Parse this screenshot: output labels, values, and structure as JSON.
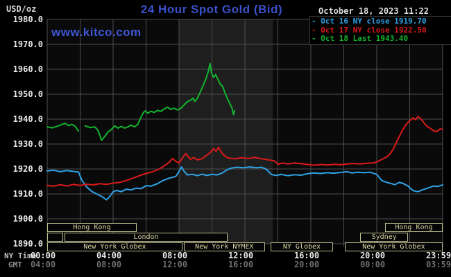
{
  "colors": {
    "title_blue": "#3a51c9",
    "watermark_blue": "#3e56d4",
    "series_blue": "#2fa3e8",
    "series_red": "#dc1a1a",
    "series_green": "#12b52e",
    "gridline": "#4e4e4e",
    "band": "#1e1e1e",
    "chart_bg": "#0a0a0a",
    "session_khaki": "#d9d9a8"
  },
  "header": {
    "unit": "USD/oz",
    "title": "24 Hour Spot Gold (Bid)",
    "watermark": "www.kitco.com",
    "timestamp": "October 18, 2023 11:22"
  },
  "legend": [
    {
      "dash": "-",
      "label": "Oct 16 NY close",
      "value": "1919.70",
      "color": "#2fa3e8"
    },
    {
      "dash": "-",
      "label": "Oct 17 NY close",
      "value": "1922.50",
      "color": "#dc1a1a"
    },
    {
      "dash": "-",
      "label": "Oct 18 Last",
      "value": "1943.40",
      "color": "#12b52e"
    }
  ],
  "axes": {
    "y_ticks": [
      "1980.0",
      "1970.0",
      "1960.0",
      "1950.0",
      "1940.0",
      "1930.0",
      "1920.0",
      "1910.0",
      "1900.0",
      "1890.0"
    ],
    "x_row1_label": "NY Time",
    "x_row2_label": "GMT",
    "x_tick_hours": [
      0,
      4,
      8,
      12,
      16,
      20,
      24
    ],
    "x_ticks_ny": [
      "00:00",
      "04:00",
      "08:00",
      "12:00",
      "16:00",
      "20:00",
      "23:59"
    ],
    "x_ticks_gmt": [
      "04:00",
      "08:00",
      "12:00",
      "16:00",
      "20:00",
      "00:00",
      "03:59"
    ]
  },
  "sessions": {
    "rows": [
      {
        "boxes": [
          {
            "label": "Hong Kong",
            "start": 0,
            "end": 5.43
          },
          {
            "label": "Hong Kong",
            "start": 20.5,
            "end": 24
          }
        ]
      },
      {
        "boxes": [
          {
            "label": "",
            "start": 0,
            "end": 0.95
          },
          {
            "label": "London",
            "start": 1.05,
            "end": 10.95
          },
          {
            "label": "Sydney",
            "start": 19.0,
            "end": 21.9
          }
        ]
      },
      {
        "boxes": [
          {
            "label": "New York Globex",
            "start": 0,
            "end": 8.2
          },
          {
            "label": "New York NYMEX",
            "start": 8.3,
            "end": 13.2
          },
          {
            "label": "NY Globex",
            "start": 13.55,
            "end": 17.35
          },
          {
            "label": "New York Globex",
            "start": 18.05,
            "end": 24
          }
        ]
      }
    ]
  },
  "chart_data": {
    "type": "line",
    "title": "24 Hour Spot Gold (Bid)",
    "ylabel": "USD/oz",
    "ylim": [
      1890,
      1980
    ],
    "xlim_hours": [
      0,
      24
    ],
    "grid": {
      "x_step_hours": 2,
      "y_step": 10,
      "on": true
    },
    "highlight_band_hours": [
      8.0,
      13.7
    ],
    "legend_position": "top-right",
    "series": [
      {
        "name": "Oct 16 NY close 1919.70",
        "color": "#2fa3e8",
        "segments": [
          [
            [
              0,
              1919.2
            ],
            [
              0.4,
              1919.5
            ],
            [
              0.8,
              1918.9
            ],
            [
              1.2,
              1919.4
            ],
            [
              1.6,
              1919.0
            ],
            [
              1.9,
              1918.8
            ],
            [
              2.1,
              1915.5
            ],
            [
              2.4,
              1912.8
            ],
            [
              2.7,
              1911.0
            ],
            [
              3.0,
              1910.0
            ],
            [
              3.3,
              1909.0
            ],
            [
              3.6,
              1907.6
            ],
            [
              3.8,
              1909.0
            ],
            [
              4.0,
              1910.8
            ],
            [
              4.2,
              1911.4
            ],
            [
              4.5,
              1910.9
            ],
            [
              4.8,
              1911.9
            ],
            [
              5.1,
              1911.6
            ],
            [
              5.4,
              1912.3
            ],
            [
              5.7,
              1912.1
            ],
            [
              6.0,
              1913.3
            ],
            [
              6.3,
              1913.1
            ],
            [
              6.7,
              1914.1
            ],
            [
              7.0,
              1915.3
            ],
            [
              7.4,
              1916.3
            ],
            [
              7.8,
              1917.0
            ],
            [
              8.0,
              1919.0
            ],
            [
              8.15,
              1920.8
            ],
            [
              8.3,
              1919.2
            ],
            [
              8.5,
              1917.6
            ],
            [
              8.8,
              1917.9
            ],
            [
              9.1,
              1917.3
            ],
            [
              9.4,
              1917.9
            ],
            [
              9.7,
              1917.4
            ],
            [
              10.0,
              1917.9
            ],
            [
              10.3,
              1917.6
            ],
            [
              10.6,
              1918.3
            ],
            [
              10.9,
              1919.6
            ],
            [
              11.2,
              1920.4
            ],
            [
              11.5,
              1920.7
            ],
            [
              11.9,
              1920.5
            ],
            [
              12.3,
              1920.8
            ],
            [
              12.7,
              1920.5
            ],
            [
              13.0,
              1920.7
            ],
            [
              13.3,
              1919.9
            ],
            [
              13.6,
              1917.8
            ],
            [
              13.9,
              1917.4
            ],
            [
              14.2,
              1917.8
            ],
            [
              14.6,
              1917.3
            ],
            [
              15.0,
              1917.7
            ],
            [
              15.4,
              1917.5
            ],
            [
              15.8,
              1918.1
            ],
            [
              16.2,
              1918.4
            ],
            [
              16.6,
              1918.2
            ],
            [
              17.0,
              1918.5
            ],
            [
              17.4,
              1918.3
            ],
            [
              17.8,
              1918.6
            ],
            [
              18.2,
              1918.9
            ],
            [
              18.5,
              1918.4
            ],
            [
              18.8,
              1918.7
            ],
            [
              19.2,
              1918.5
            ],
            [
              19.6,
              1918.7
            ],
            [
              20.0,
              1917.8
            ],
            [
              20.3,
              1915.4
            ],
            [
              20.6,
              1914.6
            ],
            [
              20.9,
              1914.1
            ],
            [
              21.1,
              1913.7
            ],
            [
              21.35,
              1914.6
            ],
            [
              21.6,
              1914.2
            ],
            [
              21.9,
              1913.1
            ],
            [
              22.2,
              1911.3
            ],
            [
              22.5,
              1910.9
            ],
            [
              22.8,
              1911.7
            ],
            [
              23.1,
              1912.3
            ],
            [
              23.4,
              1913.1
            ],
            [
              23.7,
              1913.0
            ],
            [
              24,
              1913.6
            ]
          ]
        ]
      },
      {
        "name": "Oct 17 NY close 1922.50",
        "color": "#dc1a1a",
        "segments": [
          [
            [
              0,
              1913.4
            ],
            [
              0.4,
              1913.1
            ],
            [
              0.8,
              1913.7
            ],
            [
              1.2,
              1913.2
            ],
            [
              1.6,
              1913.8
            ],
            [
              2.0,
              1913.4
            ],
            [
              2.4,
              1913.9
            ],
            [
              2.8,
              1913.6
            ],
            [
              3.2,
              1914.1
            ],
            [
              3.6,
              1913.8
            ],
            [
              4.0,
              1914.3
            ],
            [
              4.4,
              1914.6
            ],
            [
              4.8,
              1915.4
            ],
            [
              5.2,
              1916.3
            ],
            [
              5.6,
              1917.3
            ],
            [
              6.0,
              1918.2
            ],
            [
              6.4,
              1918.9
            ],
            [
              6.8,
              1920.0
            ],
            [
              7.1,
              1921.2
            ],
            [
              7.4,
              1922.6
            ],
            [
              7.6,
              1924.2
            ],
            [
              7.8,
              1923.1
            ],
            [
              8.0,
              1922.4
            ],
            [
              8.2,
              1924.4
            ],
            [
              8.4,
              1926.2
            ],
            [
              8.55,
              1925.0
            ],
            [
              8.7,
              1923.9
            ],
            [
              8.9,
              1924.6
            ],
            [
              9.1,
              1923.6
            ],
            [
              9.4,
              1924.1
            ],
            [
              9.7,
              1925.6
            ],
            [
              9.9,
              1926.6
            ],
            [
              10.1,
              1928.2
            ],
            [
              10.25,
              1927.1
            ],
            [
              10.4,
              1928.7
            ],
            [
              10.6,
              1926.4
            ],
            [
              10.8,
              1925.1
            ],
            [
              11.0,
              1924.4
            ],
            [
              11.4,
              1924.1
            ],
            [
              11.8,
              1924.5
            ],
            [
              12.2,
              1924.2
            ],
            [
              12.6,
              1924.6
            ],
            [
              13.0,
              1924.1
            ],
            [
              13.4,
              1923.7
            ],
            [
              13.8,
              1923.2
            ],
            [
              14.0,
              1921.9
            ],
            [
              14.3,
              1922.4
            ],
            [
              14.6,
              1922.0
            ],
            [
              15.0,
              1922.4
            ],
            [
              15.4,
              1922.1
            ],
            [
              15.8,
              1921.8
            ],
            [
              16.2,
              1921.5
            ],
            [
              16.6,
              1921.8
            ],
            [
              17.0,
              1921.6
            ],
            [
              17.4,
              1921.9
            ],
            [
              17.8,
              1921.7
            ],
            [
              18.2,
              1922.0
            ],
            [
              18.6,
              1922.2
            ],
            [
              19.0,
              1922.0
            ],
            [
              19.4,
              1922.3
            ],
            [
              19.8,
              1922.4
            ],
            [
              20.1,
              1923.1
            ],
            [
              20.35,
              1924.0
            ],
            [
              20.6,
              1924.8
            ],
            [
              20.8,
              1926.0
            ],
            [
              21.0,
              1928.0
            ],
            [
              21.2,
              1930.8
            ],
            [
              21.4,
              1933.5
            ],
            [
              21.6,
              1936.0
            ],
            [
              21.8,
              1938.0
            ],
            [
              22.0,
              1939.3
            ],
            [
              22.2,
              1940.5
            ],
            [
              22.35,
              1939.8
            ],
            [
              22.5,
              1941.0
            ],
            [
              22.65,
              1940.3
            ],
            [
              22.85,
              1938.6
            ],
            [
              23.05,
              1937.1
            ],
            [
              23.25,
              1936.3
            ],
            [
              23.45,
              1935.3
            ],
            [
              23.65,
              1935.0
            ],
            [
              23.85,
              1936.1
            ],
            [
              24,
              1935.8
            ]
          ]
        ]
      },
      {
        "name": "Oct 18 Last 1943.40",
        "color": "#12b52e",
        "segments": [
          [
            [
              0,
              1936.9
            ],
            [
              0.3,
              1936.5
            ],
            [
              0.6,
              1937.1
            ],
            [
              0.9,
              1937.9
            ],
            [
              1.1,
              1938.3
            ],
            [
              1.3,
              1937.4
            ],
            [
              1.5,
              1937.9
            ],
            [
              1.7,
              1937.1
            ],
            [
              1.9,
              1935.2
            ]
          ],
          [
            [
              2.3,
              1937.3
            ],
            [
              2.6,
              1936.6
            ],
            [
              2.9,
              1936.9
            ],
            [
              3.1,
              1935.3
            ],
            [
              3.3,
              1931.5
            ],
            [
              3.5,
              1933.1
            ],
            [
              3.7,
              1934.9
            ],
            [
              3.9,
              1935.9
            ],
            [
              4.1,
              1937.3
            ],
            [
              4.3,
              1936.4
            ],
            [
              4.5,
              1937.1
            ],
            [
              4.7,
              1936.4
            ],
            [
              4.9,
              1936.9
            ],
            [
              5.1,
              1937.6
            ],
            [
              5.3,
              1936.9
            ],
            [
              5.5,
              1937.9
            ],
            [
              5.7,
              1940.9
            ],
            [
              5.85,
              1942.7
            ],
            [
              5.95,
              1943.3
            ],
            [
              6.1,
              1942.4
            ],
            [
              6.3,
              1943.1
            ],
            [
              6.5,
              1942.7
            ],
            [
              6.7,
              1943.5
            ],
            [
              6.9,
              1943.1
            ],
            [
              7.1,
              1944.1
            ],
            [
              7.3,
              1944.8
            ],
            [
              7.5,
              1943.9
            ],
            [
              7.7,
              1944.4
            ],
            [
              7.9,
              1943.7
            ],
            [
              8.1,
              1944.3
            ],
            [
              8.3,
              1945.6
            ],
            [
              8.5,
              1947.0
            ],
            [
              8.7,
              1947.6
            ],
            [
              8.85,
              1948.4
            ],
            [
              8.95,
              1947.1
            ],
            [
              9.1,
              1948.2
            ],
            [
              9.3,
              1951.0
            ],
            [
              9.5,
              1954.0
            ],
            [
              9.65,
              1956.5
            ],
            [
              9.78,
              1959.2
            ],
            [
              9.88,
              1962.3
            ],
            [
              9.98,
              1958.3
            ],
            [
              10.1,
              1956.7
            ],
            [
              10.22,
              1957.9
            ],
            [
              10.35,
              1956.1
            ],
            [
              10.5,
              1954.0
            ],
            [
              10.65,
              1953.1
            ],
            [
              10.8,
              1950.4
            ],
            [
              10.95,
              1948.0
            ],
            [
              11.1,
              1946.0
            ],
            [
              11.22,
              1944.3
            ],
            [
              11.3,
              1941.8
            ],
            [
              11.37,
              1943.4
            ]
          ]
        ]
      }
    ]
  }
}
